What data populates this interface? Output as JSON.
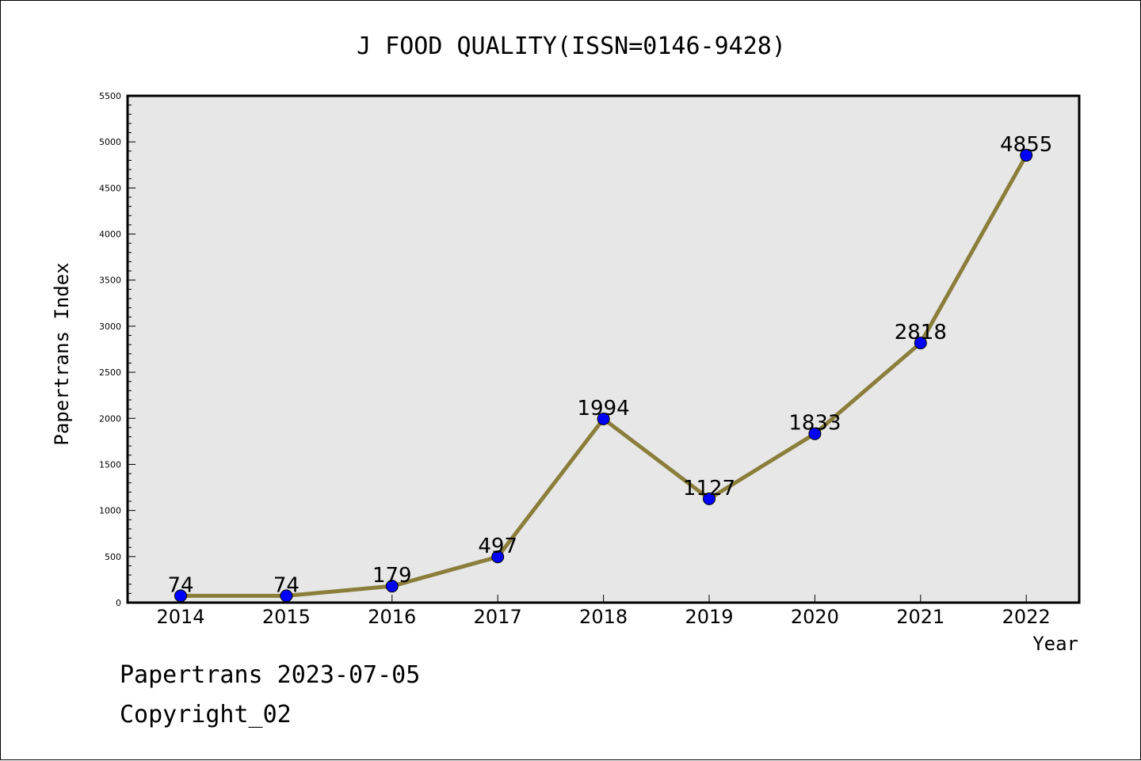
{
  "chart_data": {
    "type": "line",
    "title": "J FOOD QUALITY(ISSN=0146-9428)",
    "xlabel": "Year",
    "ylabel": "Papertrans Index",
    "categories": [
      "2014",
      "2015",
      "2016",
      "2017",
      "2018",
      "2019",
      "2020",
      "2021",
      "2022"
    ],
    "series": [
      {
        "values": [
          74,
          74,
          179,
          497,
          1994,
          1127,
          1833,
          2818,
          4855
        ]
      }
    ],
    "data_labels": [
      "74",
      "74",
      "179",
      "497",
      "1994",
      "1127",
      "1833",
      "2818",
      "4855"
    ],
    "ylim": [
      0,
      5500
    ],
    "yticks": [
      "0",
      "500",
      "1000",
      "1500",
      "2000",
      "2500",
      "3000",
      "3500",
      "4000",
      "4500",
      "5000",
      "5500"
    ],
    "grid": false,
    "colors": {
      "line": "#8b7d3a",
      "marker": "#0000ff",
      "plot_background": "#e7e7e7"
    }
  },
  "footer": {
    "date_line": "Papertrans 2023-07-05",
    "copyright": "Copyright_02"
  }
}
